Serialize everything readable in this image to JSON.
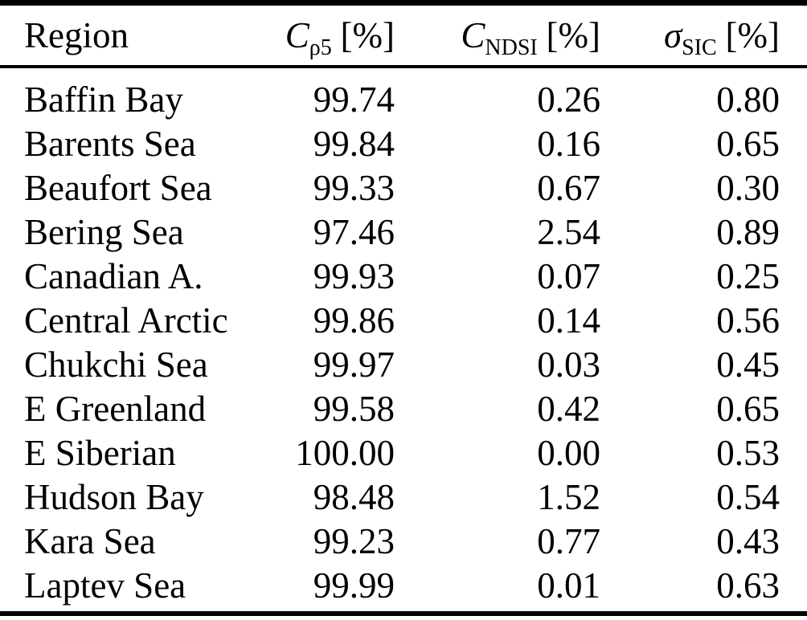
{
  "colors": {
    "background": "#ffffff",
    "text": "#000000",
    "rule": "#000000"
  },
  "table": {
    "columns": [
      {
        "label": "Region"
      },
      {
        "base": "C",
        "sub": "ρ5",
        "unit": "[%]"
      },
      {
        "base": "C",
        "sub": "NDSI",
        "unit": "[%]"
      },
      {
        "base": "σ",
        "sub": "SIC",
        "unit": "[%]"
      }
    ],
    "rows": [
      {
        "region": "Baffin Bay",
        "c_rho5": "99.74",
        "c_ndsi": "0.26",
        "sigma_sic": "0.80"
      },
      {
        "region": "Barents Sea",
        "c_rho5": "99.84",
        "c_ndsi": "0.16",
        "sigma_sic": "0.65"
      },
      {
        "region": "Beaufort Sea",
        "c_rho5": "99.33",
        "c_ndsi": "0.67",
        "sigma_sic": "0.30"
      },
      {
        "region": "Bering Sea",
        "c_rho5": "97.46",
        "c_ndsi": "2.54",
        "sigma_sic": "0.89"
      },
      {
        "region": "Canadian A.",
        "c_rho5": "99.93",
        "c_ndsi": "0.07",
        "sigma_sic": "0.25"
      },
      {
        "region": "Central Arctic",
        "c_rho5": "99.86",
        "c_ndsi": "0.14",
        "sigma_sic": "0.56"
      },
      {
        "region": "Chukchi Sea",
        "c_rho5": "99.97",
        "c_ndsi": "0.03",
        "sigma_sic": "0.45"
      },
      {
        "region": "E Greenland",
        "c_rho5": "99.58",
        "c_ndsi": "0.42",
        "sigma_sic": "0.65"
      },
      {
        "region": "E Siberian",
        "c_rho5": "100.00",
        "c_ndsi": "0.00",
        "sigma_sic": "0.53"
      },
      {
        "region": "Hudson Bay",
        "c_rho5": "98.48",
        "c_ndsi": "1.52",
        "sigma_sic": "0.54"
      },
      {
        "region": "Kara Sea",
        "c_rho5": "99.23",
        "c_ndsi": "0.77",
        "sigma_sic": "0.43"
      },
      {
        "region": "Laptev Sea",
        "c_rho5": "99.99",
        "c_ndsi": "0.01",
        "sigma_sic": "0.63"
      }
    ]
  }
}
